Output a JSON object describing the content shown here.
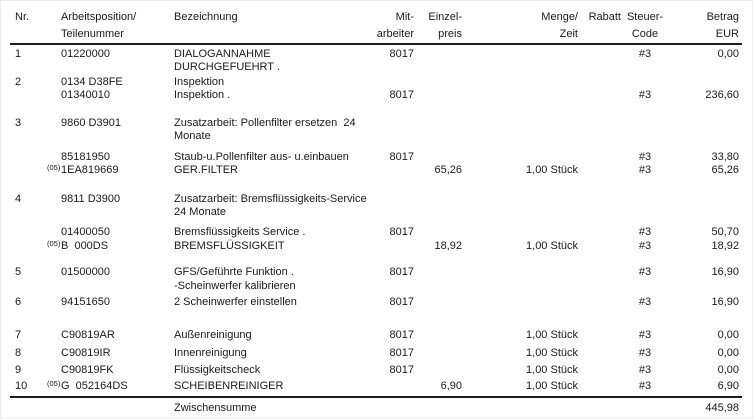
{
  "table": {
    "columns": [
      {
        "id": "nr",
        "l1": "Nr.",
        "l2": ""
      },
      {
        "id": "pos",
        "l1": "Arbeitsposition/",
        "l2": "Teilenummer"
      },
      {
        "id": "bez",
        "l1": "Bezeichnung",
        "l2": ""
      },
      {
        "id": "mit",
        "l1": "Mit-",
        "l2": "arbeiter"
      },
      {
        "id": "ep",
        "l1": "Einzel-",
        "l2": "preis"
      },
      {
        "id": "menge",
        "l1": "Menge/",
        "l2": "Zeit"
      },
      {
        "id": "rabatt",
        "l1": "Rabatt",
        "l2": ""
      },
      {
        "id": "st",
        "l1": "Steuer-",
        "l2": "Code"
      },
      {
        "id": "betrag",
        "l1": "Betrag",
        "l2": "EUR"
      }
    ],
    "lines": [
      {
        "gap": 3,
        "nr": "1",
        "sup": "",
        "pos": "01220000",
        "bez": "DIALOGANNAHME",
        "mit": "8017",
        "ep": "",
        "menge": "",
        "rabatt": "",
        "st": "#3",
        "betrag": "0,00"
      },
      {
        "gap": 0,
        "nr": "",
        "sup": "",
        "pos": "",
        "bez": "DURCHGEFUEHRT .",
        "mit": "",
        "ep": "",
        "menge": "",
        "rabatt": "",
        "st": "",
        "betrag": ""
      },
      {
        "gap": 2,
        "nr": "2",
        "sup": "",
        "pos": "0134 D38FE",
        "bez": "Inspektion",
        "mit": "",
        "ep": "",
        "menge": "",
        "rabatt": "",
        "st": "",
        "betrag": ""
      },
      {
        "gap": 0,
        "nr": "",
        "sup": "",
        "pos": "01340010",
        "bez": "Inspektion .",
        "mit": "8017",
        "ep": "",
        "menge": "",
        "rabatt": "",
        "st": "#3",
        "betrag": "236,60"
      },
      {
        "gap": 15,
        "nr": "3",
        "sup": "",
        "pos": "9860 D3901",
        "bez": "Zusatzarbeit: Pollenfilter ersetzen  24",
        "mit": "",
        "ep": "",
        "menge": "",
        "rabatt": "",
        "st": "",
        "betrag": ""
      },
      {
        "gap": 0,
        "nr": "",
        "sup": "",
        "pos": "",
        "bez": "Monate",
        "mit": "",
        "ep": "",
        "menge": "",
        "rabatt": "",
        "st": "",
        "betrag": ""
      },
      {
        "gap": 8,
        "nr": "",
        "sup": "",
        "pos": "85181950",
        "bez": "Staub-u.Pollenfilter aus- u.einbauen",
        "mit": "8017",
        "ep": "",
        "menge": "",
        "rabatt": "",
        "st": "#3",
        "betrag": "33,80"
      },
      {
        "gap": 0,
        "nr": "",
        "sup": "(05)",
        "pos": "1EA819669",
        "bez": "GER.FILTER",
        "mit": "",
        "ep": "65,26",
        "menge": "1,00 Stück",
        "rabatt": "",
        "st": "#3",
        "betrag": "65,26"
      },
      {
        "gap": 16,
        "nr": "4",
        "sup": "",
        "pos": "9811 D3900",
        "bez": "Zusatzarbeit: Bremsflüssigkeits-Service",
        "mit": "",
        "ep": "",
        "menge": "",
        "rabatt": "",
        "st": "",
        "betrag": ""
      },
      {
        "gap": 0,
        "nr": "",
        "sup": "",
        "pos": "",
        "bez": "24 Monate",
        "mit": "",
        "ep": "",
        "menge": "",
        "rabatt": "",
        "st": "",
        "betrag": ""
      },
      {
        "gap": 7,
        "nr": "",
        "sup": "",
        "pos": "01400050",
        "bez": "Bremsflüssigkeits Service .",
        "mit": "8017",
        "ep": "",
        "menge": "",
        "rabatt": "",
        "st": "#3",
        "betrag": "50,70"
      },
      {
        "gap": 1,
        "nr": "",
        "sup": "(05)",
        "pos": "B  000DS",
        "bez": "BREMSFLÜSSIGKEIT",
        "mit": "",
        "ep": "18,92",
        "menge": "1,00 Stück",
        "rabatt": "",
        "st": "#3",
        "betrag": "18,92"
      },
      {
        "gap": 13,
        "nr": "5",
        "sup": "",
        "pos": "01500000",
        "bez": "GFS/Geführte Funktion .",
        "mit": "8017",
        "ep": "",
        "menge": "",
        "rabatt": "",
        "st": "#3",
        "betrag": "16,90"
      },
      {
        "gap": 1,
        "nr": "",
        "sup": "",
        "pos": "",
        "bez": "-Scheinwerfer kalibrieren",
        "mit": "",
        "ep": "",
        "menge": "",
        "rabatt": "",
        "st": "",
        "betrag": ""
      },
      {
        "gap": 3,
        "nr": "6",
        "sup": "",
        "pos": "94151650",
        "bez": "2 Scheinwerfer einstellen",
        "mit": "8017",
        "ep": "",
        "menge": "",
        "rabatt": "",
        "st": "#3",
        "betrag": "16,90"
      },
      {
        "gap": 20,
        "nr": "7",
        "sup": "",
        "pos": "C90819AR",
        "bez": "Außenreinigung",
        "mit": "8017",
        "ep": "",
        "menge": "1,00 Stück",
        "rabatt": "",
        "st": "#3",
        "betrag": "0,00"
      },
      {
        "gap": 5,
        "nr": "8",
        "sup": "",
        "pos": "C90819IR",
        "bez": "Innenreinigung",
        "mit": "8017",
        "ep": "",
        "menge": "1,00 Stück",
        "rabatt": "",
        "st": "#3",
        "betrag": "0,00"
      },
      {
        "gap": 4,
        "nr": "9",
        "sup": "",
        "pos": "C90819FK",
        "bez": "Flüssigkeitscheck",
        "mit": "8017",
        "ep": "",
        "menge": "1,00 Stück",
        "rabatt": "",
        "st": "#3",
        "betrag": "0,00"
      },
      {
        "gap": 3,
        "nr": "10",
        "sup": "(05)",
        "pos": "G  052164DS",
        "bez": "SCHEIBENREINIGER",
        "mit": "",
        "ep": "6,90",
        "menge": "1,00 Stück",
        "rabatt": "",
        "st": "#3",
        "betrag": "6,90"
      }
    ],
    "footer": {
      "label": "Zwischensumme",
      "value": "445,98"
    }
  }
}
